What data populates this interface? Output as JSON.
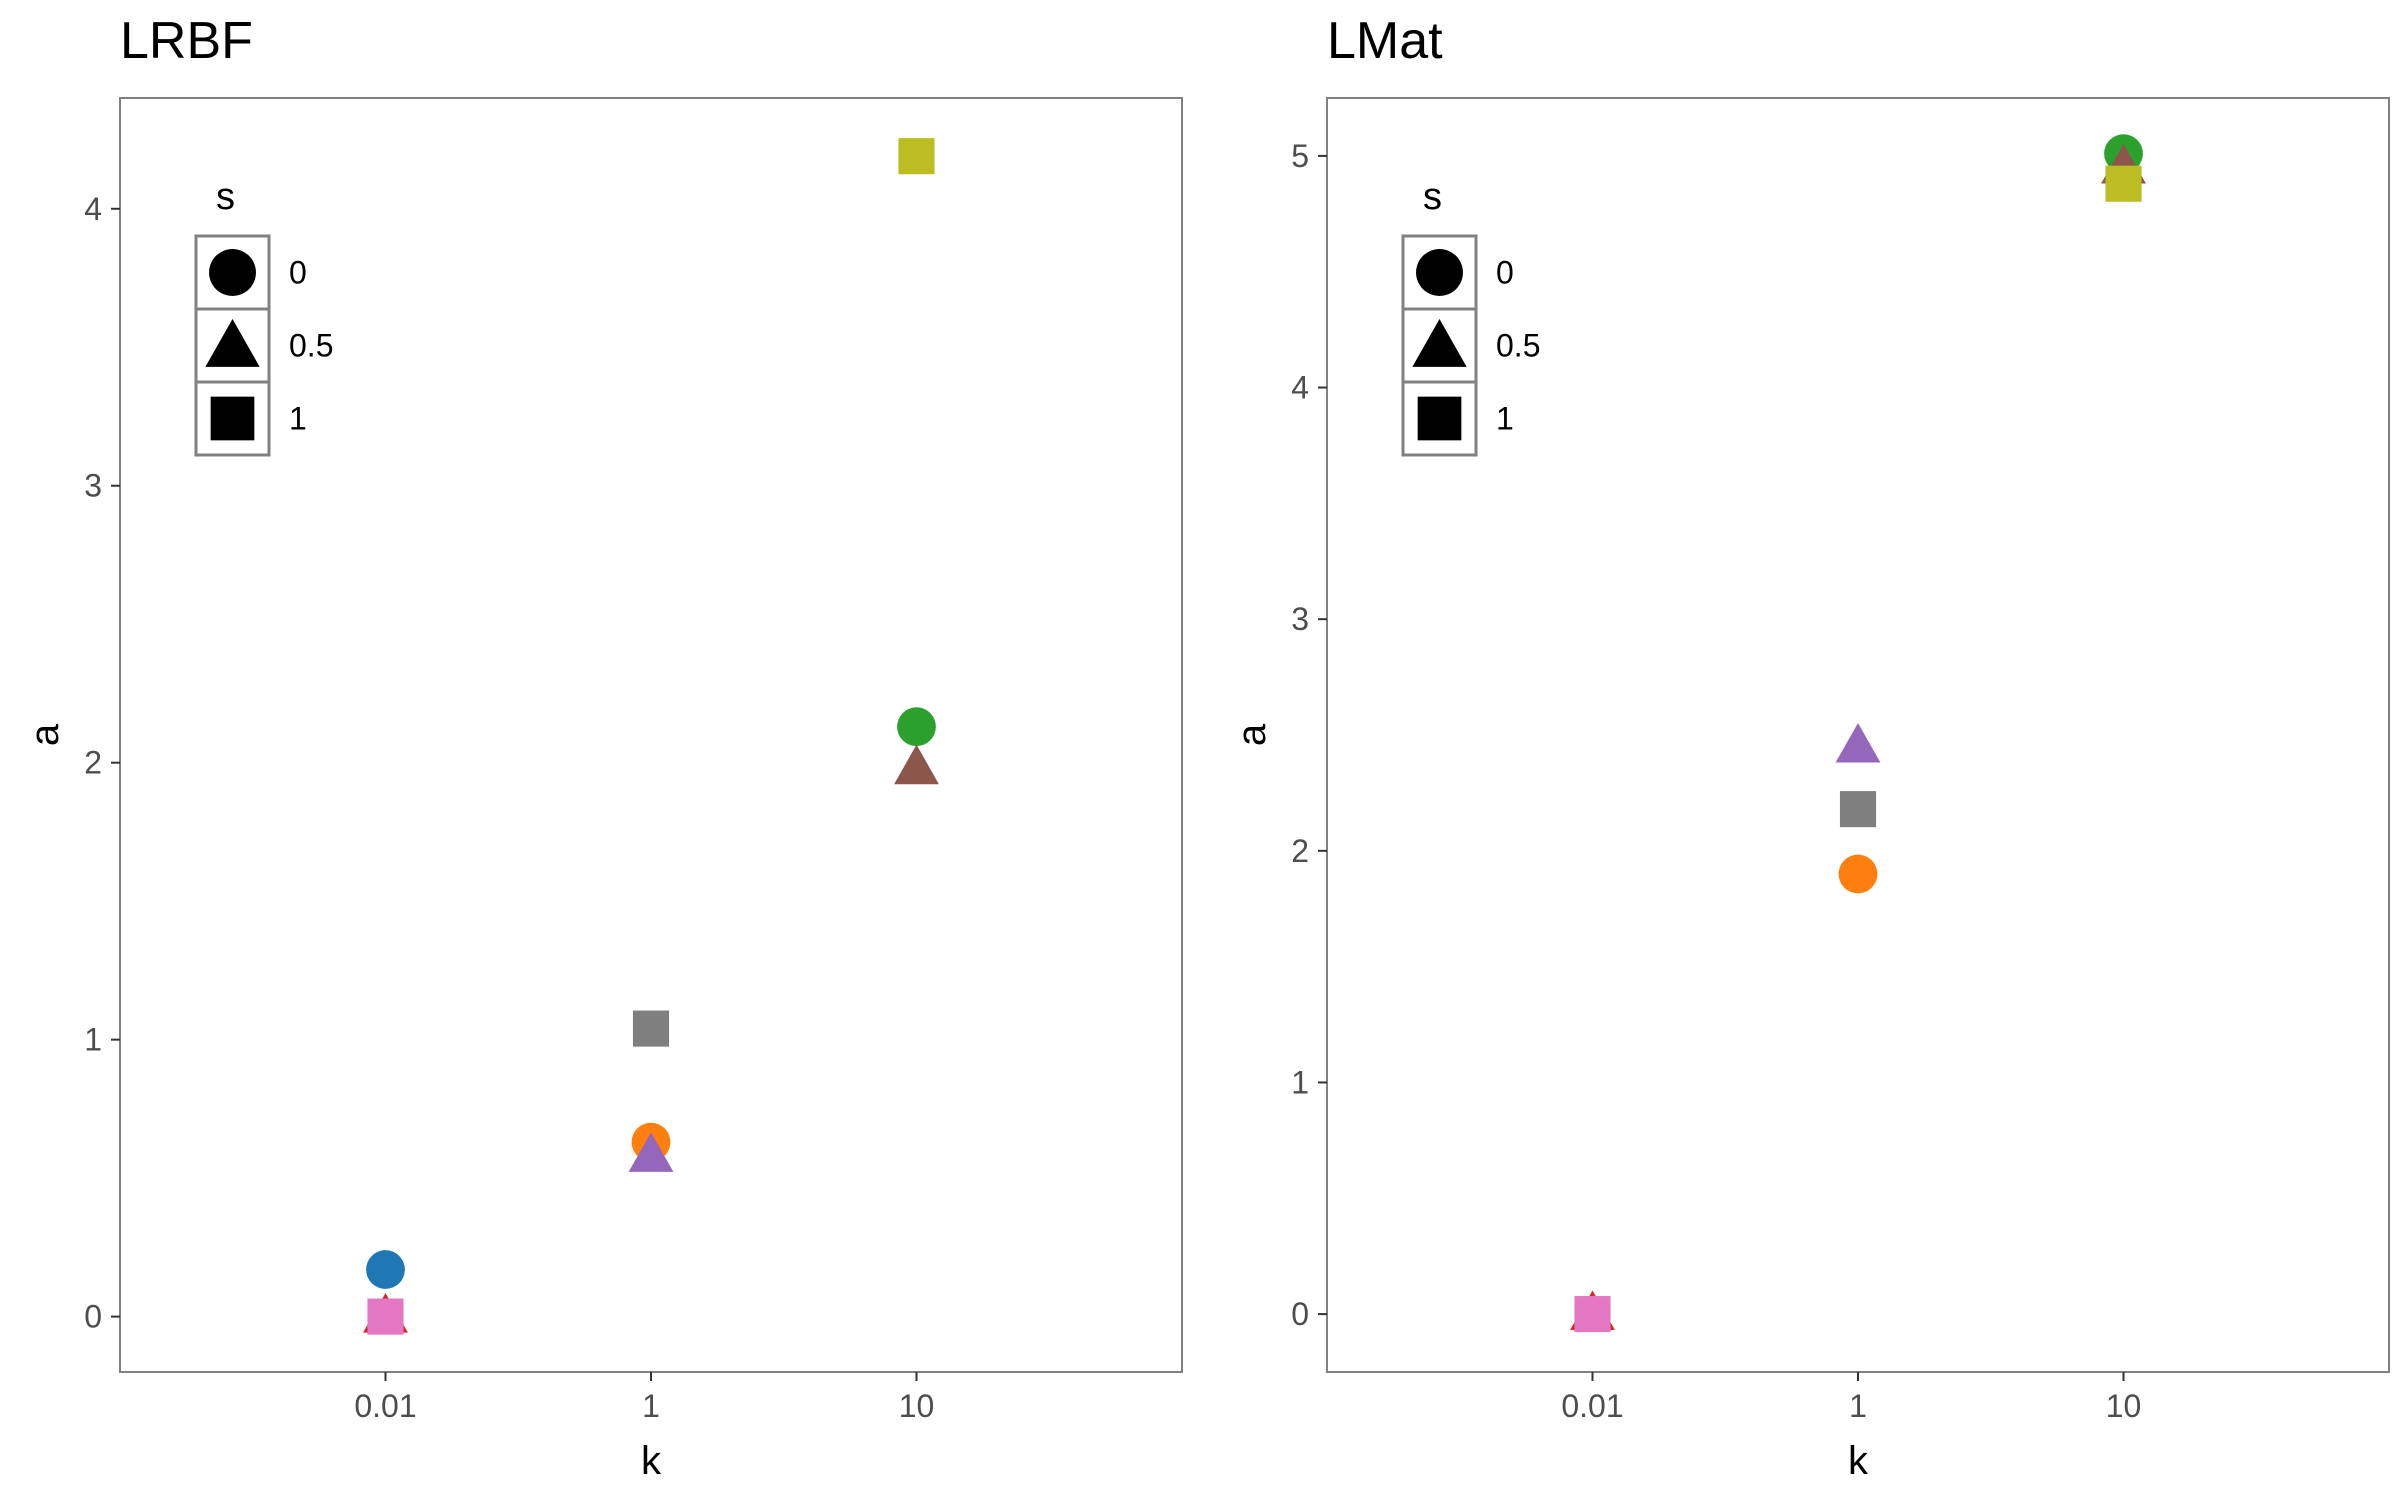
{
  "chart_data": [
    {
      "type": "scatter",
      "title": "LRBF",
      "xlabel": "k",
      "ylabel": "a",
      "x_categories": [
        "0.01",
        "1",
        "10"
      ],
      "ylim": [
        -0.2,
        4.4
      ],
      "yticks": [
        0,
        1,
        2,
        3,
        4
      ],
      "grid": false,
      "legend": {
        "title": "s",
        "placement": "top-left",
        "entries": [
          {
            "label": "0",
            "shape": "circle"
          },
          {
            "label": "0.5",
            "shape": "triangle"
          },
          {
            "label": "1",
            "shape": "square"
          }
        ]
      },
      "points": [
        {
          "x": "0.01",
          "y": 0.17,
          "s": "0",
          "color": "#1f77b4"
        },
        {
          "x": "0.01",
          "y": 0.0,
          "s": "0.5",
          "color": "#d62728"
        },
        {
          "x": "0.01",
          "y": 0.0,
          "s": "1",
          "color": "#e377c2"
        },
        {
          "x": "1",
          "y": 0.63,
          "s": "0",
          "color": "#ff7f0e"
        },
        {
          "x": "1",
          "y": 0.58,
          "s": "0.5",
          "color": "#9467bd"
        },
        {
          "x": "1",
          "y": 1.04,
          "s": "1",
          "color": "#7f7f7f"
        },
        {
          "x": "10",
          "y": 2.13,
          "s": "0",
          "color": "#2ca02c"
        },
        {
          "x": "10",
          "y": 1.98,
          "s": "0.5",
          "color": "#8c564b"
        },
        {
          "x": "10",
          "y": 4.19,
          "s": "1",
          "color": "#bcbd22"
        }
      ]
    },
    {
      "type": "scatter",
      "title": "LMat",
      "xlabel": "k",
      "ylabel": "a",
      "x_categories": [
        "0.01",
        "1",
        "10"
      ],
      "ylim": [
        -0.25,
        5.25
      ],
      "yticks": [
        0,
        1,
        2,
        3,
        4,
        5
      ],
      "grid": false,
      "legend": {
        "title": "s",
        "placement": "top-left",
        "entries": [
          {
            "label": "0",
            "shape": "circle"
          },
          {
            "label": "0.5",
            "shape": "triangle"
          },
          {
            "label": "1",
            "shape": "square"
          }
        ]
      },
      "points": [
        {
          "x": "0.01",
          "y": 0.0,
          "s": "0.5",
          "color": "#d62728"
        },
        {
          "x": "0.01",
          "y": 0.0,
          "s": "1",
          "color": "#e377c2"
        },
        {
          "x": "1",
          "y": 1.9,
          "s": "0",
          "color": "#ff7f0e"
        },
        {
          "x": "1",
          "y": 2.45,
          "s": "0.5",
          "color": "#9467bd"
        },
        {
          "x": "1",
          "y": 2.18,
          "s": "1",
          "color": "#7f7f7f"
        },
        {
          "x": "10",
          "y": 5.01,
          "s": "0",
          "color": "#2ca02c"
        },
        {
          "x": "10",
          "y": 4.95,
          "s": "0.5",
          "color": "#8c564b"
        },
        {
          "x": "10",
          "y": 4.88,
          "s": "1",
          "color": "#bcbd22"
        }
      ]
    }
  ]
}
